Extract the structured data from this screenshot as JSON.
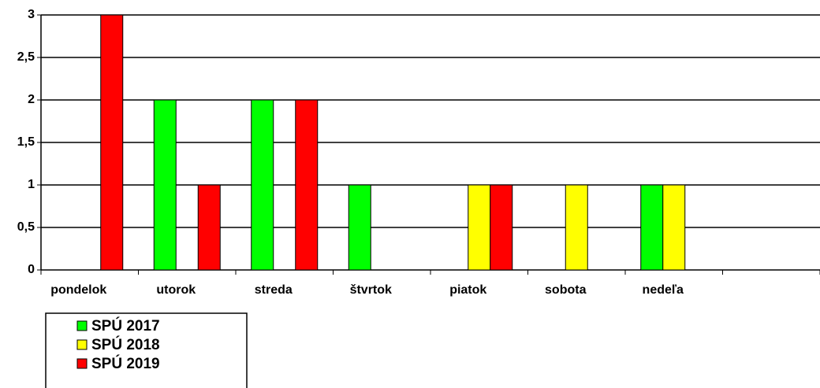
{
  "chart_data": {
    "type": "bar",
    "categories": [
      "pondelok",
      "utorok",
      "streda",
      "štvrtok",
      "piatok",
      "sobota",
      "nedeľa",
      null
    ],
    "series": [
      {
        "name": "SPÚ 2017",
        "color": "#00ff00",
        "values": [
          0,
          2,
          2,
          1,
          0,
          0,
          1,
          null
        ]
      },
      {
        "name": "SPÚ 2018",
        "color": "#ffff00",
        "values": [
          0,
          0,
          0,
          0,
          1,
          1,
          1,
          null
        ]
      },
      {
        "name": "SPÚ 2019",
        "color": "#ff0000",
        "values": [
          3,
          1,
          2,
          0,
          1,
          0,
          0,
          null
        ]
      }
    ],
    "ylim": [
      0,
      3
    ],
    "yticks": [
      0,
      {
        "value": 0.5,
        "label": "0,5"
      },
      1,
      {
        "value": 1.5,
        "label": "1,5"
      },
      2,
      {
        "value": 2.5,
        "label": "2,5"
      },
      3
    ],
    "grid": true,
    "legend": "bottom-left"
  }
}
